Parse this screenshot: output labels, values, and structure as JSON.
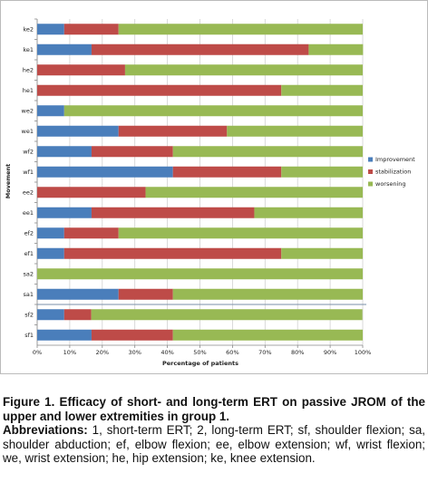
{
  "chart_data": {
    "type": "stacked-barh",
    "x_label": "Percentage of patients",
    "y_label": "Movement",
    "categories": [
      "ke2",
      "ke1",
      "he2",
      "he1",
      "we2",
      "we1",
      "wf2",
      "wf1",
      "ee2",
      "ee1",
      "ef2",
      "ef1",
      "sa2",
      "sa1",
      "sf2",
      "sf1"
    ],
    "series": [
      {
        "name": "Improvement",
        "color": "#4a7ebb",
        "values": [
          8.3,
          16.7,
          0,
          0,
          8.3,
          25,
          16.7,
          41.7,
          0,
          16.7,
          8.3,
          8.3,
          0,
          25,
          8.3,
          16.7
        ]
      },
      {
        "name": "stabilization",
        "color": "#be4b48",
        "values": [
          16.7,
          66.7,
          27,
          75,
          0,
          33.3,
          25,
          33.3,
          33.3,
          50,
          16.7,
          66.7,
          0,
          16.7,
          8.3,
          25
        ]
      },
      {
        "name": "worsening",
        "color": "#98b954",
        "values": [
          75,
          16.7,
          73,
          25,
          91.7,
          41.7,
          58.3,
          25,
          66.7,
          33.3,
          75,
          25,
          100,
          58.3,
          83.3,
          58.3
        ]
      }
    ],
    "xlim": [
      0,
      100
    ],
    "xticks": [
      {
        "value": 0,
        "label": "0%"
      },
      {
        "value": 10,
        "label": "10%"
      },
      {
        "value": 20,
        "label": "20%"
      },
      {
        "value": 30,
        "label": "30%"
      },
      {
        "value": 40,
        "label": "40%"
      },
      {
        "value": 50,
        "label": "50%"
      },
      {
        "value": 60,
        "label": "60%"
      },
      {
        "value": 70,
        "label": "70%"
      },
      {
        "value": 80,
        "label": "80%"
      },
      {
        "value": 90,
        "label": "90%"
      },
      {
        "value": 100,
        "label": "100%"
      }
    ],
    "grid": true,
    "legend": "right"
  },
  "caption": {
    "title": "Figure 1. Efficacy of short- and long-term ERT on passive JROM of the upper and lower extremities in group 1.",
    "abbreviations_label": "Abbreviations:",
    "abbreviations_text": "1, short-term ERT; 2, long-term ERT; sf, shoulder flexion; sa, shoulder abduction; ef, elbow flexion; ee, elbow extension; wf, wrist flexion; we, wrist extension; he, hip extension; ke, knee extension."
  }
}
